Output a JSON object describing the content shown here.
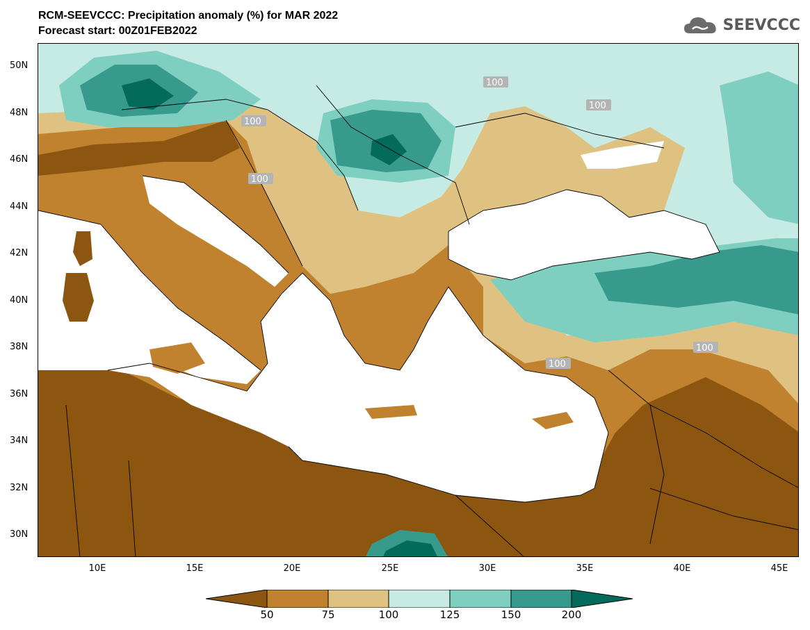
{
  "header": {
    "title": "RCM-SEEVCCC: Precipitation anomaly (%) for MAR 2022",
    "subtitle": "Forecast start: 00Z01FEB2022"
  },
  "logo": {
    "text": "SEEVCCC",
    "icon": "cloud-icon"
  },
  "axes": {
    "lat_labels": [
      "50N",
      "48N",
      "46N",
      "44N",
      "42N",
      "40N",
      "38N",
      "36N",
      "34N",
      "32N",
      "30N"
    ],
    "lon_labels": [
      "10E",
      "15E",
      "20E",
      "25E",
      "30E",
      "35E",
      "40E",
      "45E"
    ]
  },
  "contour_labels": [
    "100",
    "100",
    "100",
    "100",
    "100",
    "100"
  ],
  "colorbar": {
    "ticks": [
      "50",
      "75",
      "100",
      "125",
      "150",
      "200"
    ],
    "colors": {
      "below_50": "#8c5510",
      "50_75": "#c0822f",
      "75_100": "#dfc282",
      "100_125": "#c5ebe4",
      "125_150": "#7ecfc0",
      "150_200": "#379a8d",
      "above_200": "#046a5b"
    }
  },
  "colors": {
    "sea": "#ffffff",
    "border": "#000000"
  }
}
